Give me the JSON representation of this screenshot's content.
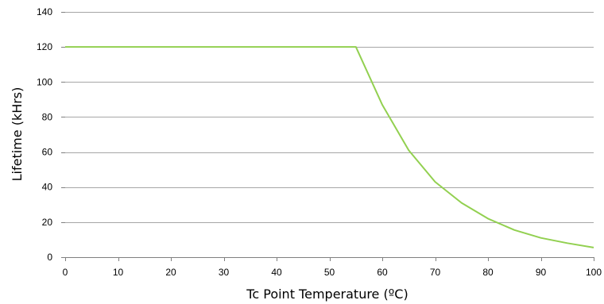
{
  "chart_data": {
    "type": "line",
    "xlabel": "Tc Point Temperature (ºC)",
    "ylabel": "Lifetime (kHrs)",
    "xlim": [
      0,
      100
    ],
    "ylim": [
      0,
      140
    ],
    "x_ticks": [
      0,
      10,
      20,
      30,
      40,
      50,
      60,
      70,
      80,
      90,
      100
    ],
    "y_ticks": [
      0,
      20,
      40,
      60,
      80,
      100,
      120,
      140
    ],
    "grid": "horizontal",
    "legend": "none",
    "line_color": "#92d050",
    "series": [
      {
        "x": [
          0,
          55,
          60,
          65,
          70,
          75,
          80,
          85,
          90,
          95,
          100
        ],
        "y": [
          120,
          120,
          87,
          61,
          43,
          31,
          22,
          15.5,
          11,
          8,
          5.5
        ]
      }
    ]
  }
}
